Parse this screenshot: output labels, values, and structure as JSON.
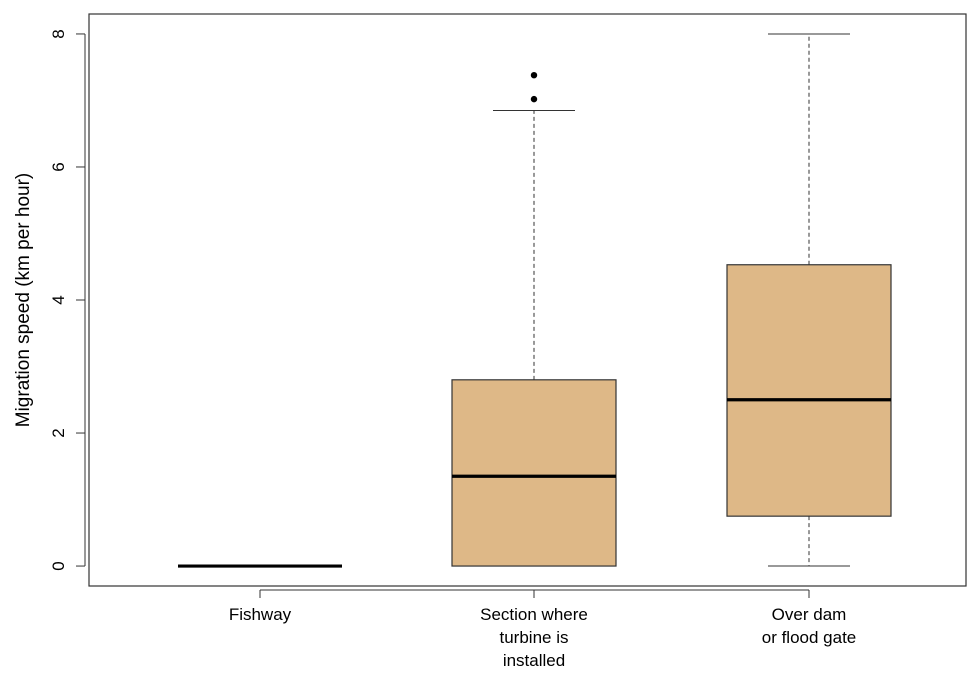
{
  "chart_data": {
    "type": "box",
    "title": "",
    "xlabel": "",
    "ylabel": "Migration speed (km per hour)",
    "ylim": [
      -0.3,
      8.3
    ],
    "yticks": [
      0,
      2,
      4,
      6,
      8
    ],
    "grid": false,
    "legend": "none",
    "box_fill": "#DEB887",
    "categories": [
      [
        "Fishway"
      ],
      [
        "Section where",
        "turbine is",
        "installed"
      ],
      [
        "Over dam",
        "or flood gate"
      ]
    ],
    "boxes": [
      {
        "min": 0,
        "q1": 0,
        "median": 0,
        "q3": 0,
        "max": 0,
        "outliers": []
      },
      {
        "min": 0,
        "q1": 0,
        "median": 1.35,
        "q3": 2.8,
        "max": 6.85,
        "outliers": [
          7.02,
          7.38
        ]
      },
      {
        "min": 0,
        "q1": 0.75,
        "median": 2.5,
        "q3": 4.53,
        "max": 8.0,
        "outliers": []
      }
    ]
  }
}
